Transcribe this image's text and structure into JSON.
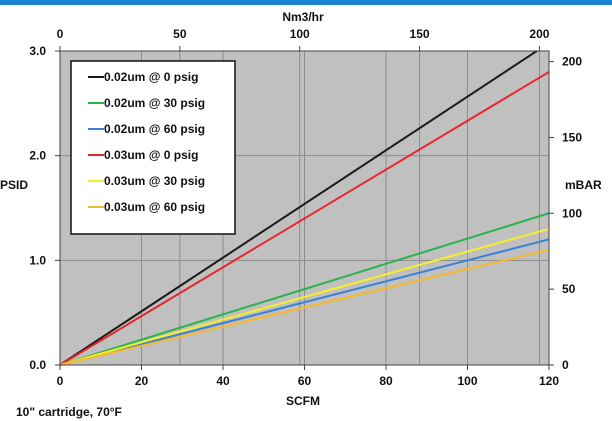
{
  "chart_data": {
    "type": "line",
    "xlabel": "SCFM",
    "ylabel": "PSID",
    "secondary_x": {
      "label": "Nm3/hr",
      "xlim": [
        0,
        204
      ],
      "ticks": [
        0,
        50,
        100,
        150,
        200
      ]
    },
    "secondary_y": {
      "label": "mBAR",
      "ylim": [
        0,
        207
      ],
      "ticks": [
        0,
        50,
        100,
        150,
        200
      ]
    },
    "xlim": [
      0,
      120
    ],
    "ylim": [
      0,
      3.0
    ],
    "x_ticks": [
      0,
      20,
      40,
      60,
      80,
      100,
      120
    ],
    "y_ticks": [
      "0.0",
      "1.0",
      "2.0",
      "3.0"
    ],
    "grid": true,
    "legend_position": "top-left",
    "note": "10\" cartridge, 70°F",
    "series": [
      {
        "name": "0.02um @ 0 psig",
        "color": "#1a1a1a",
        "points": [
          [
            0,
            0
          ],
          [
            117,
            3.0
          ]
        ]
      },
      {
        "name": "0.02um @ 30 psig",
        "color": "#2bb34b",
        "points": [
          [
            0,
            0
          ],
          [
            120,
            1.45
          ]
        ]
      },
      {
        "name": "0.02um @ 60 psig",
        "color": "#3b82d6",
        "points": [
          [
            0,
            0
          ],
          [
            120,
            1.2
          ]
        ]
      },
      {
        "name": "0.03um @ 0 psig",
        "color": "#e8262b",
        "points": [
          [
            0,
            0
          ],
          [
            120,
            2.8
          ]
        ]
      },
      {
        "name": "0.03um @ 30 psig",
        "color": "#f5f02a",
        "points": [
          [
            0,
            0
          ],
          [
            120,
            1.3
          ]
        ]
      },
      {
        "name": "0.03um @ 60 psig",
        "color": "#f5b82e",
        "points": [
          [
            0,
            0
          ],
          [
            120,
            1.1
          ]
        ]
      }
    ]
  }
}
